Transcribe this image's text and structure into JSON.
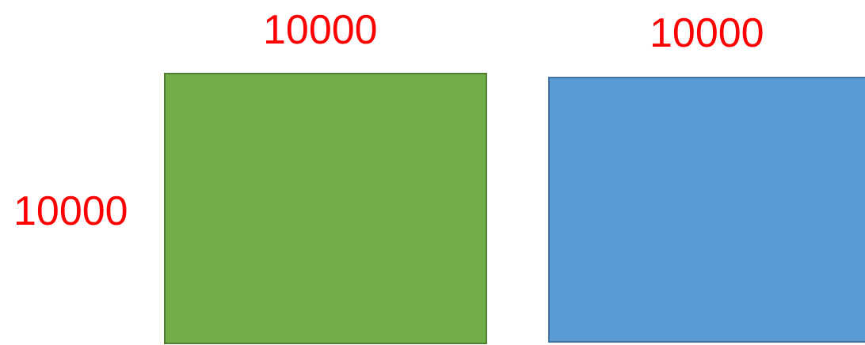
{
  "labels": {
    "top_left": "10000",
    "top_right": "10000",
    "left": "10000"
  },
  "colors": {
    "label_text": "#ff0000",
    "green_fill": "#70ad47",
    "green_border": "#507e32",
    "blue_fill": "#5b9bd5",
    "blue_border": "#41719c"
  }
}
